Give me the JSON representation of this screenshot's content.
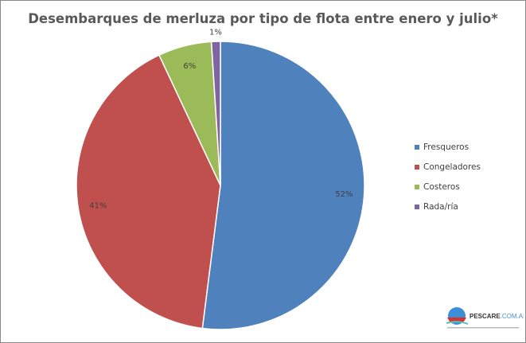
{
  "chart_data": {
    "type": "pie",
    "title": "Desembarques de merluza por tipo de flota entre enero y julio*",
    "categories": [
      "Fresqueros",
      "Congeladores",
      "Costeros",
      "Rada/ría"
    ],
    "values": [
      52,
      41,
      6,
      1
    ],
    "labels": [
      "52%",
      "41%",
      "6%",
      "1%"
    ],
    "colors": [
      "#4f81bd",
      "#c0504d",
      "#9bbb59",
      "#8064a2"
    ],
    "start_angle": "top, clockwise",
    "legend_position": "right"
  },
  "logo": {
    "text": "PESCARE.COM.AR"
  }
}
